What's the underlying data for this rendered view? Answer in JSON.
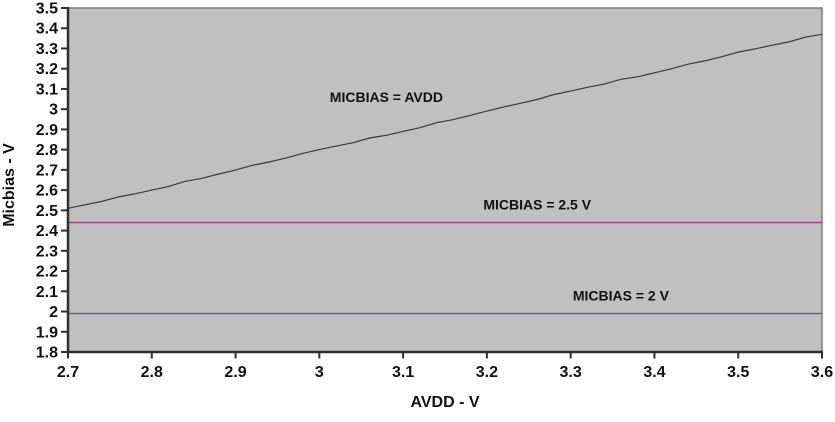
{
  "chart_data": {
    "type": "line",
    "title": "",
    "xlabel": "AVDD - V",
    "ylabel": "Micbias - V",
    "xlim": [
      2.7,
      3.6
    ],
    "ylim": [
      1.8,
      3.5
    ],
    "x_tick_labels": [
      "2.7",
      "2.8",
      "2.9",
      "3",
      "3.1",
      "3.2",
      "3.3",
      "3.4",
      "3.5",
      "3.6"
    ],
    "y_tick_labels": [
      "3.5",
      "3.4",
      "3.3",
      "3.2",
      "3.1",
      "3",
      "2.9",
      "2.8",
      "2.7",
      "2.6",
      "2.5",
      "2.4",
      "2.3",
      "2.2",
      "2.1",
      "2",
      "1.9",
      "1.8"
    ],
    "grid": false,
    "legend": "inline-annotations",
    "plot_background": "#c0c0c0",
    "plot_border_color": "#7d7d7d",
    "axis_color": "#2f2f2f",
    "series": [
      {
        "name": "MICBIAS = AVDD",
        "color": "#3a3a3a",
        "x": [
          2.7,
          2.8,
          2.9,
          3.0,
          3.1,
          3.2,
          3.3,
          3.4,
          3.5,
          3.6
        ],
        "values": [
          2.51,
          2.6,
          2.7,
          2.8,
          2.89,
          2.99,
          3.09,
          3.18,
          3.28,
          3.37
        ]
      },
      {
        "name": "MICBIAS = 2.5 V",
        "color": "#a23a9c",
        "x": [
          2.7,
          3.6
        ],
        "values": [
          2.44,
          2.44
        ]
      },
      {
        "name": "MICBIAS = 2 V",
        "color": "#5a5aa6",
        "x": [
          2.7,
          3.6
        ],
        "values": [
          1.99,
          1.99
        ]
      }
    ],
    "annotations": [
      {
        "text": "MICBIAS = AVDD",
        "x": 3.08,
        "y": 3.06
      },
      {
        "text": "MICBIAS = 2.5 V",
        "x": 3.26,
        "y": 2.53
      },
      {
        "text": "MICBIAS = 2 V",
        "x": 3.36,
        "y": 2.08
      }
    ]
  }
}
